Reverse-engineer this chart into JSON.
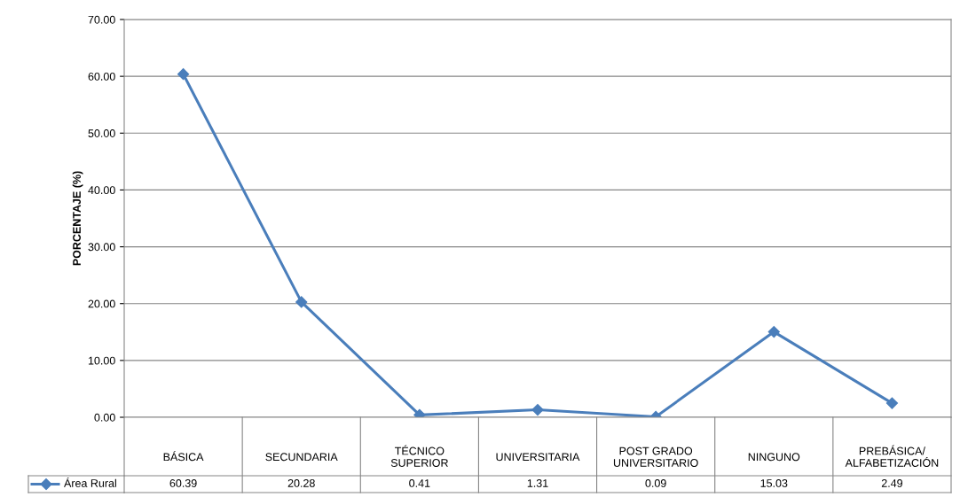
{
  "chart_data": {
    "type": "line",
    "ylabel": "PORCENTAJE (%)",
    "categories": [
      "BÁSICA",
      "SECUNDARIA",
      "TÉCNICO\nSUPERIOR",
      "UNIVERSITARIA",
      "POST GRADO\nUNIVERSITARIO",
      "NINGUNO",
      "PREBÁSICA/\nALFABETIZACIÓN"
    ],
    "series": [
      {
        "name": "Área Rural",
        "color": "#4a7ebb",
        "values": [
          60.39,
          20.28,
          0.41,
          1.31,
          0.09,
          15.03,
          2.49
        ]
      }
    ],
    "ylim": [
      0,
      70
    ],
    "yticks": [
      {
        "value": 0,
        "label": "0.00"
      },
      {
        "value": 10,
        "label": "10.00"
      },
      {
        "value": 20,
        "label": "20.00"
      },
      {
        "value": 30,
        "label": "30.00"
      },
      {
        "value": 40,
        "label": "40.00"
      },
      {
        "value": 50,
        "label": "50.00"
      },
      {
        "value": 60,
        "label": "60.00"
      },
      {
        "value": 70,
        "label": "70.00"
      }
    ],
    "grid": "y",
    "legend": "bottom left",
    "marker": "diamond",
    "line_style": "solid",
    "data_labels": true
  }
}
